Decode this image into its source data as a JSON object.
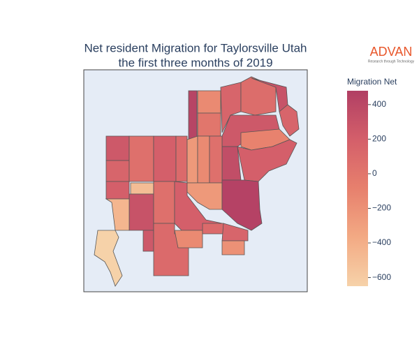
{
  "chart_data": {
    "type": "choropleth",
    "title": "Net resident Migration for Taylorsville Utah",
    "subtitle": "the first three months of 2019",
    "brand": "ADVAN",
    "brand_tagline": "Research through Technology",
    "colorbar_title": "Migration Net",
    "clim": [
      -650,
      480
    ],
    "cticks": [
      400,
      200,
      0,
      {
        "value": -200,
        "label": "−200"
      },
      {
        "value": -400,
        "label": "−400"
      },
      {
        "value": -600,
        "label": "−600"
      }
    ],
    "colorscale": [
      "#f6d2a9",
      "#f3aa84",
      "#e7806d",
      "#d45f6a",
      "#b13f64"
    ],
    "values": [
      430,
      -150,
      0,
      150,
      80,
      300,
      150,
      250,
      -100,
      350,
      200,
      250,
      150,
      50,
      200,
      100,
      -250,
      -150,
      50,
      200,
      -500,
      300,
      50,
      200,
      -250,
      450,
      -450,
      -650,
      250,
      100,
      -150,
      100,
      150,
      -200
    ]
  }
}
